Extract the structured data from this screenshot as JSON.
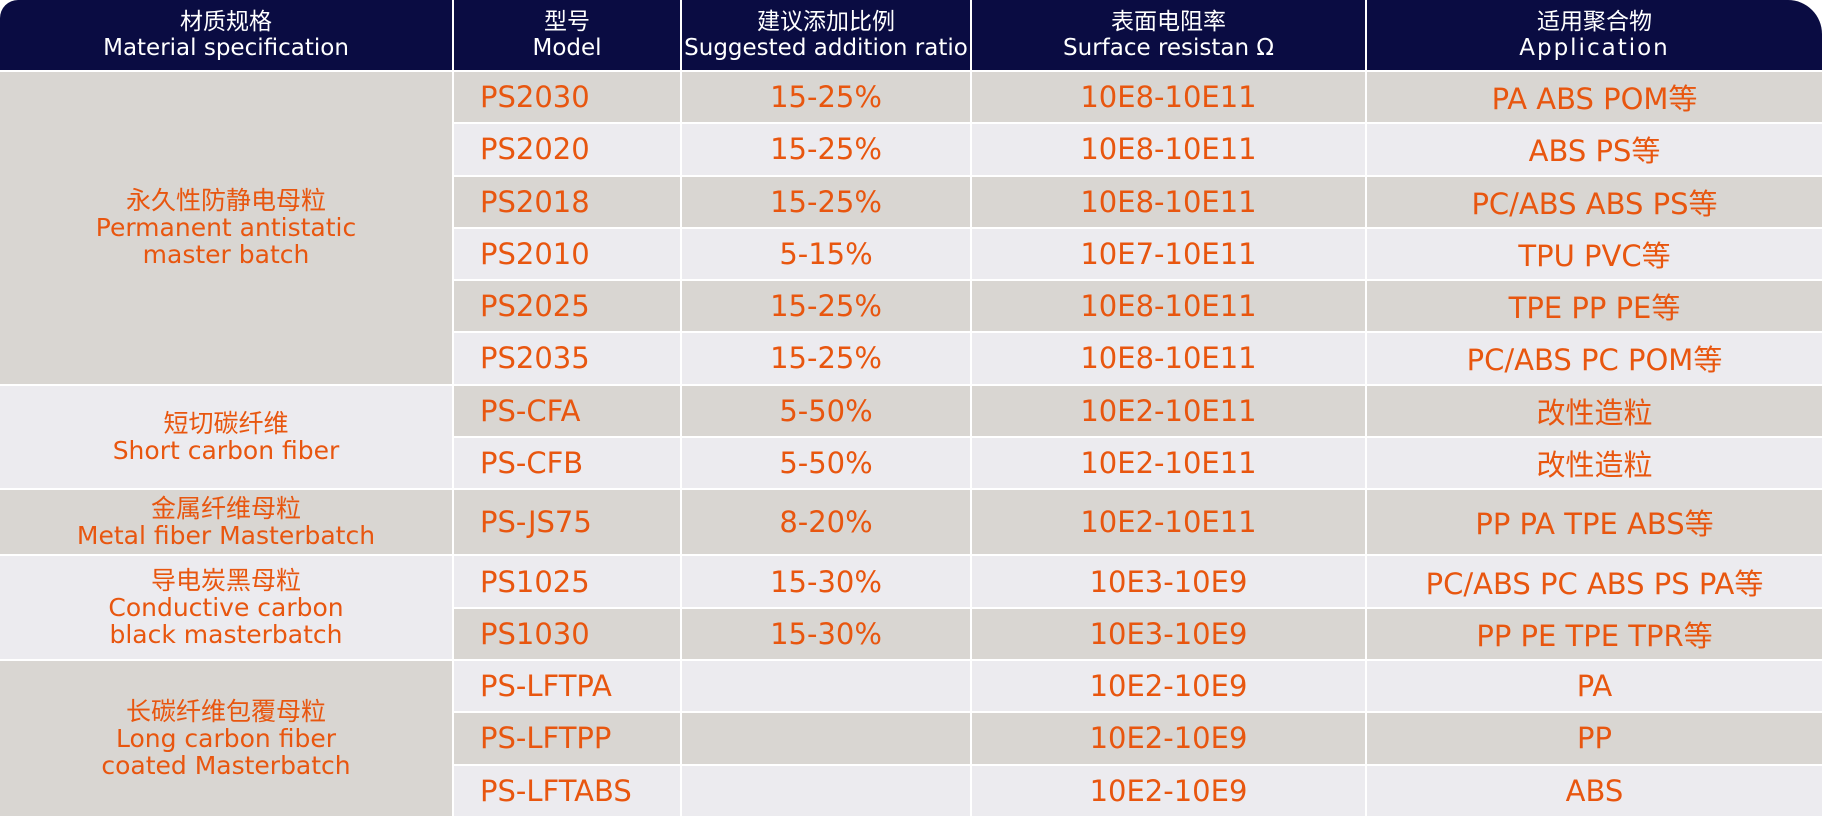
{
  "header": {
    "material_cn": "材质规格",
    "material_en": "Material specification",
    "model_cn": "型号",
    "model_en": "Model",
    "ratio_cn": "建议添加比例",
    "ratio_en": "Suggested addition ratio",
    "resist_cn": "表面电阻率",
    "resist_en": "Surface resistan Ω",
    "app_cn": "适用聚合物",
    "app_en": "Application"
  },
  "groups": [
    {
      "cn": "永久性防静电母粒",
      "en1": "Permanent antistatic",
      "en2": "master batch"
    },
    {
      "cn": "短切碳纤维",
      "en1": "Short carbon fiber"
    },
    {
      "cn": "金属纤维母粒",
      "en1": "Metal fiber Masterbatch"
    },
    {
      "cn": "导电炭黑母粒",
      "en1": "Conductive carbon",
      "en2": "black masterbatch"
    },
    {
      "cn": "长碳纤维包覆母粒",
      "en1": "Long carbon fiber",
      "en2": "coated Masterbatch"
    }
  ],
  "rows": [
    {
      "model": "PS2030",
      "ratio": "15-25%",
      "resistance": "10E8-10E11",
      "application": "PA ABS POM等"
    },
    {
      "model": "PS2020",
      "ratio": "15-25%",
      "resistance": "10E8-10E11",
      "application": "ABS PS等"
    },
    {
      "model": "PS2018",
      "ratio": "15-25%",
      "resistance": "10E8-10E11",
      "application": "PC/ABS ABS PS等"
    },
    {
      "model": "PS2010",
      "ratio": "5-15%",
      "resistance": "10E7-10E11",
      "application": "TPU PVC等"
    },
    {
      "model": "PS2025",
      "ratio": "15-25%",
      "resistance": "10E8-10E11",
      "application": "TPE PP PE等"
    },
    {
      "model": "PS2035",
      "ratio": "15-25%",
      "resistance": "10E8-10E11",
      "application": "PC/ABS PC POM等"
    },
    {
      "model": "PS-CFA",
      "ratio": "5-50%",
      "resistance": "10E2-10E11",
      "application": "改性造粒"
    },
    {
      "model": "PS-CFB",
      "ratio": "5-50%",
      "resistance": "10E2-10E11",
      "application": "改性造粒"
    },
    {
      "model": "PS-JS75",
      "ratio": "8-20%",
      "resistance": "10E2-10E11",
      "application": "PP PA TPE ABS等"
    },
    {
      "model": "PS1025",
      "ratio": "15-30%",
      "resistance": "10E3-10E9",
      "application": "PC/ABS PC ABS PS PA等"
    },
    {
      "model": "PS1030",
      "ratio": "15-30%",
      "resistance": "10E3-10E9",
      "application": "PP PE TPE TPR等"
    },
    {
      "model": "PS-LFTPA",
      "ratio": "",
      "resistance": "10E2-10E9",
      "application": "PA"
    },
    {
      "model": "PS-LFTPP",
      "ratio": "",
      "resistance": "10E2-10E9",
      "application": "PP"
    },
    {
      "model": "PS-LFTABS",
      "ratio": "",
      "resistance": "10E2-10E9",
      "application": "ABS"
    }
  ],
  "colors": {
    "header_bg": "#0a0c42",
    "header_text": "#ffffff",
    "cell_text": "#e8560f",
    "row_dark": "#d9d6d2",
    "row_light": "#ecebef"
  }
}
